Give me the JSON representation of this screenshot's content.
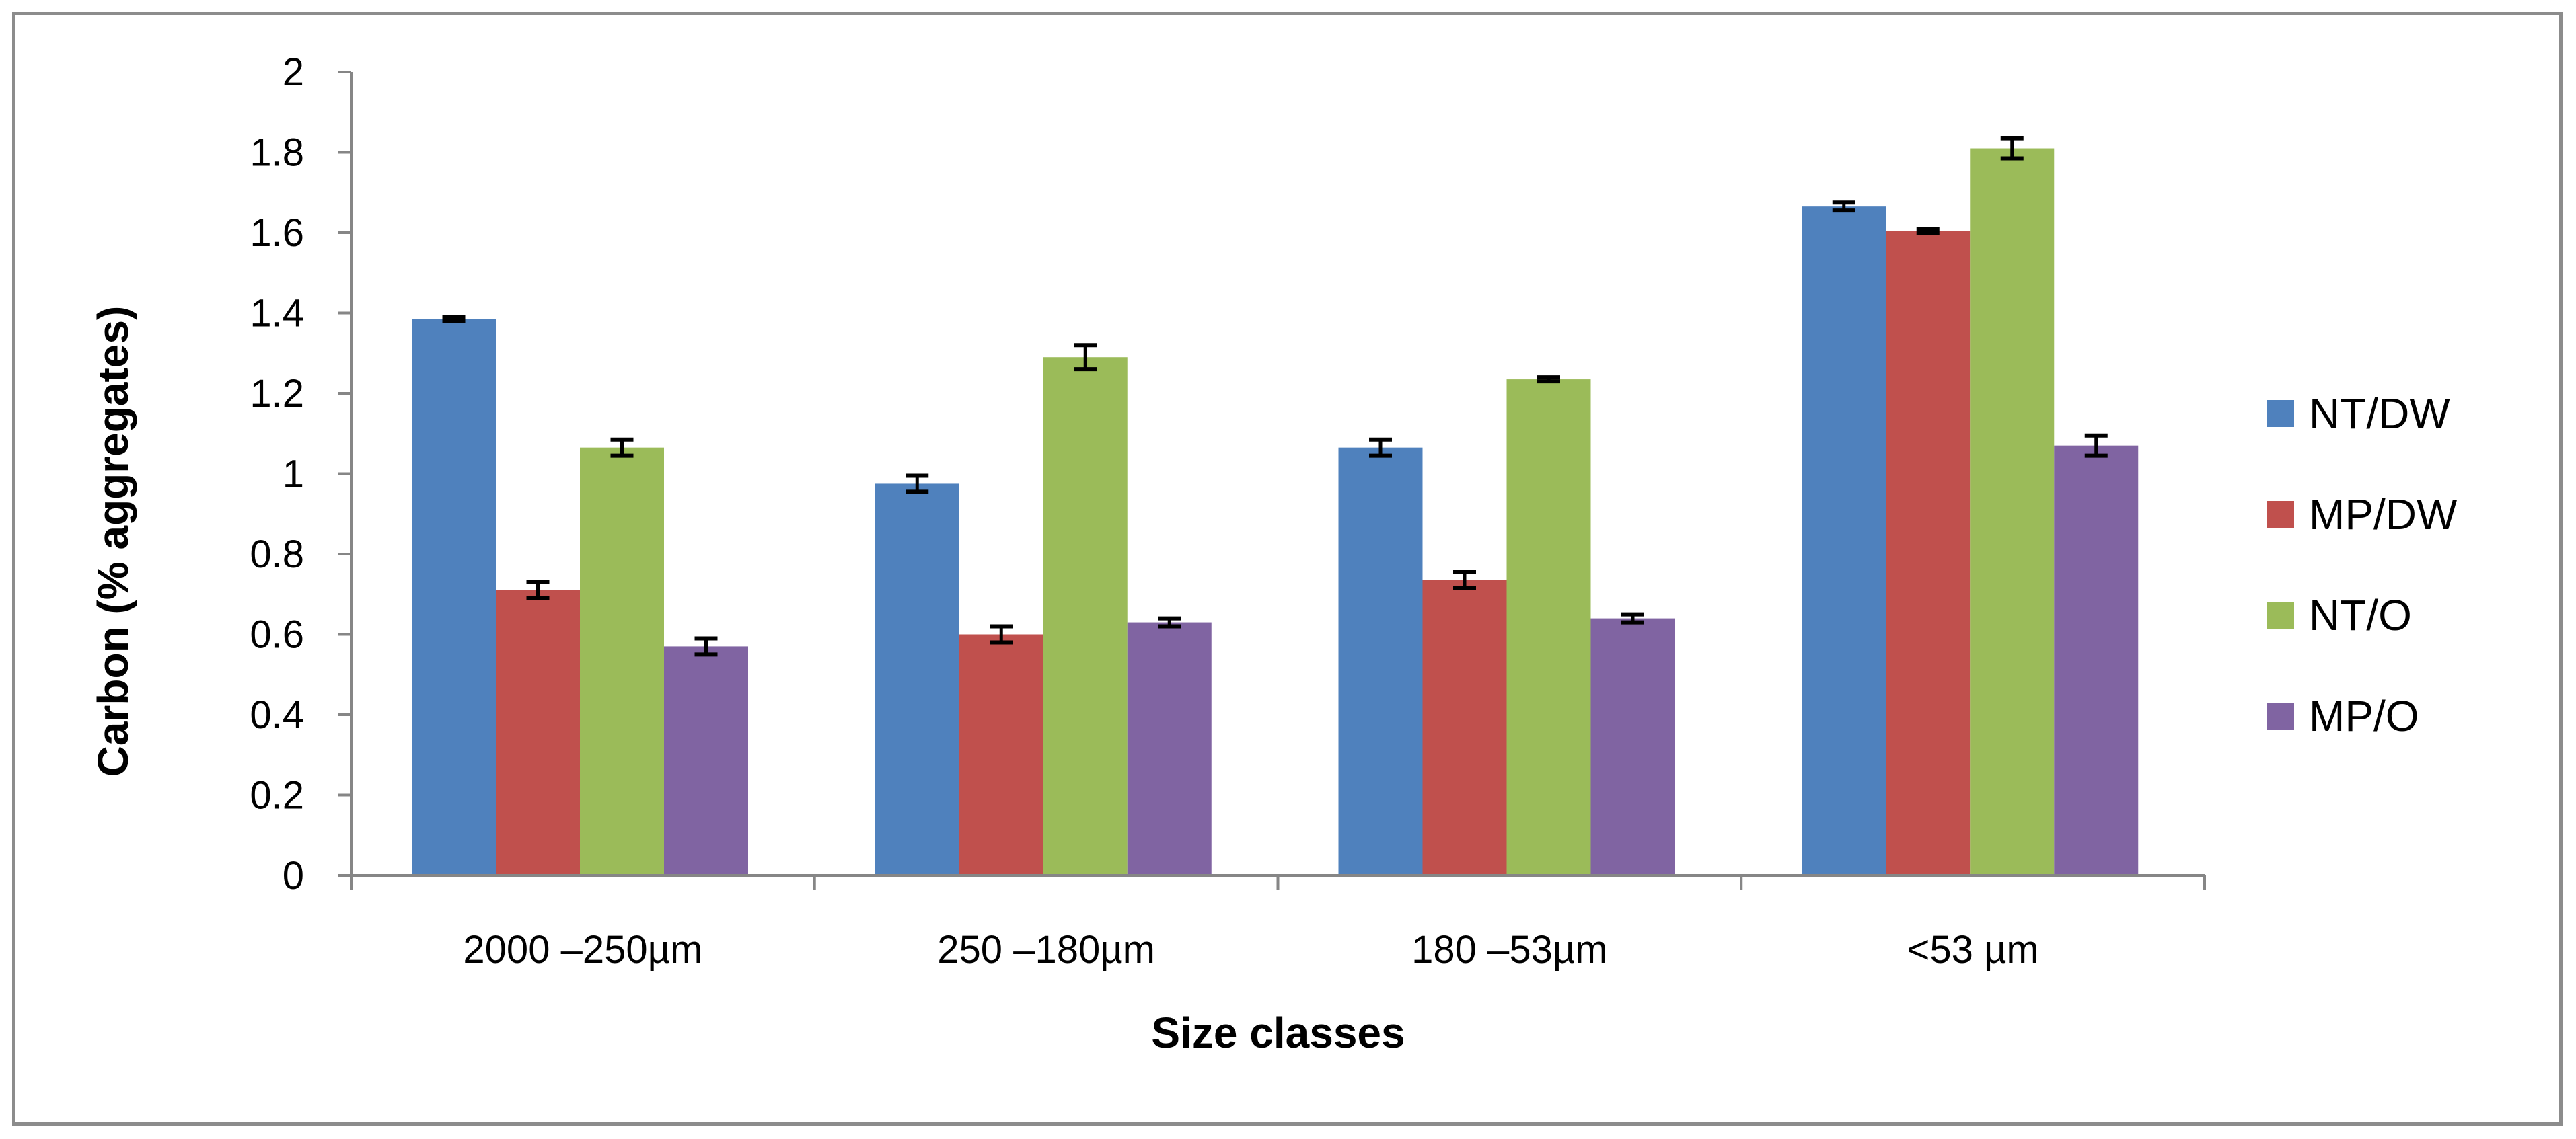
{
  "chart_data": {
    "type": "bar",
    "title": "",
    "xlabel": "Size classes",
    "ylabel": "Carbon (% aggregates)",
    "ylim": [
      0,
      2
    ],
    "yticks": [
      "0",
      "0.2",
      "0.4",
      "0.6",
      "0.8",
      "1",
      "1.2",
      "1.4",
      "1.6",
      "1.8",
      "2"
    ],
    "grid": false,
    "legend_position": "right",
    "categories": [
      "2000 –250µm",
      "250 –180µm",
      "180 –53µm",
      "<53 µm"
    ],
    "series": [
      {
        "name": "NT/DW",
        "color": "#4f81bd",
        "values": [
          1.385,
          0.975,
          1.065,
          1.665
        ],
        "errors": [
          0.005,
          0.02,
          0.02,
          0.01
        ]
      },
      {
        "name": "MP/DW",
        "color": "#c0504d",
        "values": [
          0.71,
          0.6,
          0.735,
          1.605
        ],
        "errors": [
          0.02,
          0.02,
          0.02,
          0.005
        ]
      },
      {
        "name": "NT/O",
        "color": "#9bbb59",
        "values": [
          1.065,
          1.29,
          1.235,
          1.81
        ],
        "errors": [
          0.02,
          0.03,
          0.005,
          0.025
        ]
      },
      {
        "name": "MP/O",
        "color": "#8064a2",
        "values": [
          0.57,
          0.63,
          0.64,
          1.07
        ],
        "errors": [
          0.02,
          0.01,
          0.01,
          0.025
        ]
      }
    ]
  }
}
